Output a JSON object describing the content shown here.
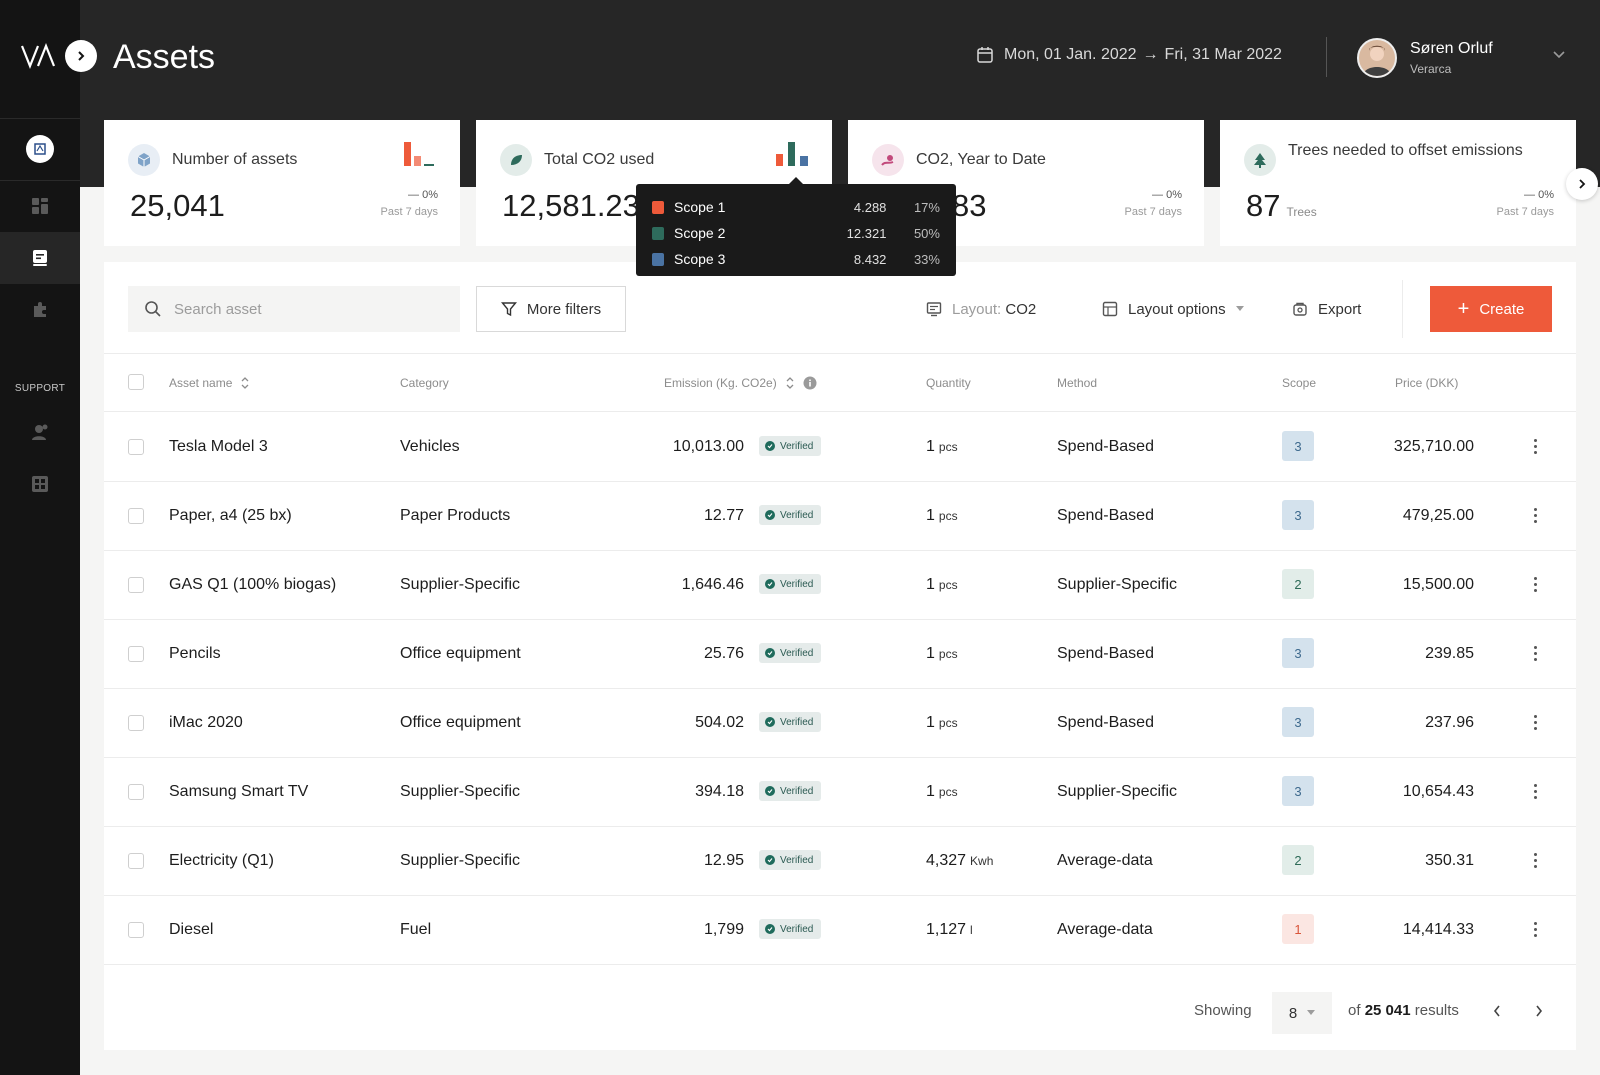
{
  "app": {
    "logo_text": "VA",
    "page_title": "Assets"
  },
  "header": {
    "date_start": "Mon, 01 Jan. 2022",
    "date_arrow": "→",
    "date_end": "Fri, 31 Mar 2022",
    "user_name": "Søren Orluf",
    "user_org": "Verarca"
  },
  "sidebar": {
    "support_label": "SUPPORT"
  },
  "cards": [
    {
      "label": "Number of assets",
      "value": "25,041",
      "unit": "",
      "change": "— 0%",
      "period": "Past 7 days",
      "icon": "cube-icon"
    },
    {
      "label": "Total CO2 used",
      "value": "12,581.23",
      "unit": "",
      "change": "",
      "period": "",
      "icon": "leaf-icon"
    },
    {
      "label": "CO2, Year to Date",
      "value": "83",
      "unit": "",
      "change": "— 0%",
      "period": "Past 7 days",
      "icon": "chart-dot-icon"
    },
    {
      "label": "Trees needed to offset emissions",
      "value": "87",
      "unit": "Trees",
      "change": "— 0%",
      "period": "Past 7 days",
      "icon": "tree-icon"
    }
  ],
  "tooltip": {
    "rows": [
      {
        "name": "Scope 1",
        "value": "4.288",
        "pct": "17%",
        "color": "#ee5a3a"
      },
      {
        "name": "Scope 2",
        "value": "12.321",
        "pct": "50%",
        "color": "#2e6b5c"
      },
      {
        "name": "Scope 3",
        "value": "8.432",
        "pct": "33%",
        "color": "#4a73a3"
      }
    ]
  },
  "toolbar": {
    "search_placeholder": "Search asset",
    "more_filters": "More filters",
    "layout_prefix": "Layout:",
    "layout_value": "CO2",
    "layout_options": "Layout options",
    "export": "Export",
    "create": "Create"
  },
  "table": {
    "headers": {
      "asset_name": "Asset name",
      "category": "Category",
      "emission": "Emission (Kg. CO2e)",
      "quantity": "Quantity",
      "method": "Method",
      "scope": "Scope",
      "price": "Price (DKK)"
    },
    "verified_label": "Verified",
    "rows": [
      {
        "name": "Tesla Model 3",
        "category": "Vehicles",
        "emission": "10,013.00",
        "qty": "1",
        "qty_unit": "pcs",
        "method": "Spend-Based",
        "scope": "3",
        "price": "325,710.00"
      },
      {
        "name": "Paper, a4 (25 bx)",
        "category": "Paper Products",
        "emission": "12.77",
        "qty": "1",
        "qty_unit": "pcs",
        "method": "Spend-Based",
        "scope": "3",
        "price": "479,25.00"
      },
      {
        "name": "GAS Q1 (100% biogas)",
        "category": "Supplier-Specific",
        "emission": "1,646.46",
        "qty": "1",
        "qty_unit": "pcs",
        "method": "Supplier-Specific",
        "scope": "2",
        "price": "15,500.00"
      },
      {
        "name": "Pencils",
        "category": "Office equipment",
        "emission": "25.76",
        "qty": "1",
        "qty_unit": "pcs",
        "method": "Spend-Based",
        "scope": "3",
        "price": "239.85"
      },
      {
        "name": "iMac 2020",
        "category": "Office equipment",
        "emission": "504.02",
        "qty": "1",
        "qty_unit": "pcs",
        "method": "Spend-Based",
        "scope": "3",
        "price": "237.96"
      },
      {
        "name": "Samsung Smart TV",
        "category": "Supplier-Specific",
        "emission": "394.18",
        "qty": "1",
        "qty_unit": "pcs",
        "method": "Supplier-Specific",
        "scope": "3",
        "price": "10,654.43"
      },
      {
        "name": "Electricity (Q1)",
        "category": "Supplier-Specific",
        "emission": "12.95",
        "qty": "4,327",
        "qty_unit": "Kwh",
        "method": "Average-data",
        "scope": "2",
        "price": "350.31"
      },
      {
        "name": "Diesel",
        "category": "Fuel",
        "emission": "1,799",
        "qty": "1,127",
        "qty_unit": "l",
        "method": "Average-data",
        "scope": "1",
        "price": "14,414.33"
      }
    ]
  },
  "footer": {
    "showing": "Showing",
    "per_page": "8",
    "of_prefix": "of",
    "total": "25 041",
    "results": "results"
  },
  "colors": {
    "accent": "#ee5a3a",
    "dark": "#262626",
    "sidebar": "#141414"
  }
}
